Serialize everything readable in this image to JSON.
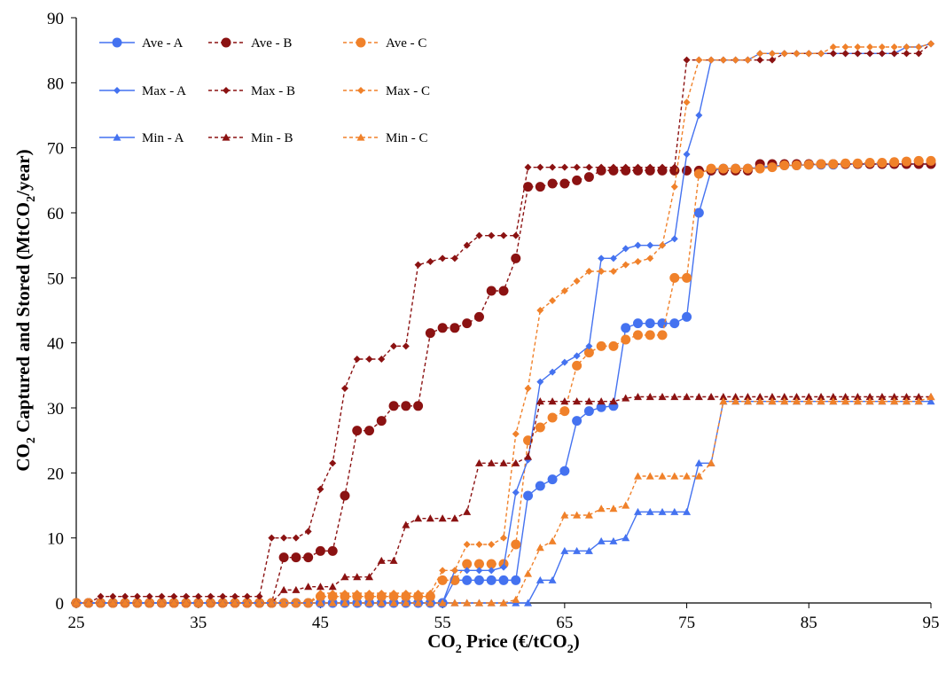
{
  "chart_data": {
    "type": "line",
    "xlabel": "CO2 Price (€/tCO2)",
    "ylabel": "CO2 Captured and Stored (MtCO2/year)",
    "xlim": [
      25,
      95
    ],
    "ylim": [
      0,
      90
    ],
    "xticks": [
      25,
      35,
      45,
      55,
      65,
      75,
      85,
      95
    ],
    "yticks": [
      0,
      10,
      20,
      30,
      40,
      50,
      60,
      70,
      80,
      90
    ],
    "grid": false,
    "legend_position": "top-left",
    "x": [
      25,
      26,
      27,
      28,
      29,
      30,
      31,
      32,
      33,
      34,
      35,
      36,
      37,
      38,
      39,
      40,
      41,
      42,
      43,
      44,
      45,
      46,
      47,
      48,
      49,
      50,
      51,
      52,
      53,
      54,
      55,
      56,
      57,
      58,
      59,
      60,
      61,
      62,
      63,
      64,
      65,
      66,
      67,
      68,
      69,
      70,
      71,
      72,
      73,
      74,
      75,
      76,
      77,
      78,
      79,
      80,
      81,
      82,
      83,
      84,
      85,
      86,
      87,
      88,
      89,
      90,
      91,
      92,
      93,
      94,
      95
    ],
    "series": [
      {
        "name": "Ave - A",
        "color": "#4472f0",
        "dash": "solid",
        "marker": "circle",
        "values": [
          0,
          0,
          0,
          0,
          0,
          0,
          0,
          0,
          0,
          0,
          0,
          0,
          0,
          0,
          0,
          0,
          0,
          0,
          0,
          0,
          0,
          0,
          0,
          0,
          0,
          0,
          0,
          0,
          0,
          0,
          0,
          3.5,
          3.5,
          3.5,
          3.5,
          3.5,
          3.5,
          16.5,
          18,
          19,
          20.3,
          28,
          29.5,
          30.1,
          30.3,
          42.3,
          43,
          43,
          43,
          43,
          44,
          60,
          66.5,
          66.8,
          66.8,
          66.8,
          67,
          67.2,
          67.3,
          67.3,
          67.4,
          67.4,
          67.4,
          67.5,
          67.5,
          67.5,
          67.5,
          67.5,
          67.5,
          67.5,
          67.5
        ]
      },
      {
        "name": "Ave - B",
        "color": "#8b1212",
        "dash": "dashed",
        "marker": "circle",
        "values": [
          0,
          0,
          0,
          0,
          0,
          0,
          0,
          0,
          0,
          0,
          0,
          0,
          0,
          0,
          0,
          0,
          0,
          7,
          7,
          7,
          8,
          8,
          16.5,
          26.5,
          26.5,
          28,
          30.3,
          30.3,
          30.3,
          41.5,
          42.3,
          42.3,
          43,
          44,
          48,
          48,
          53,
          64,
          64,
          64.5,
          64.5,
          65,
          65.5,
          66.5,
          66.5,
          66.5,
          66.5,
          66.5,
          66.5,
          66.5,
          66.5,
          66.5,
          66.5,
          66.5,
          66.5,
          66.5,
          67.5,
          67.5,
          67.5,
          67.5,
          67.5,
          67.5,
          67.5,
          67.5,
          67.5,
          67.5,
          67.5,
          67.5,
          67.5,
          67.5,
          67.5
        ]
      },
      {
        "name": "Ave - C",
        "color": "#f0812a",
        "dash": "dashed",
        "marker": "circle",
        "values": [
          0,
          0,
          0,
          0,
          0,
          0,
          0,
          0,
          0,
          0,
          0,
          0,
          0,
          0,
          0,
          0,
          0,
          0,
          0,
          0,
          1,
          1,
          1,
          1,
          1,
          1,
          1,
          1,
          1,
          1,
          3.5,
          3.5,
          6,
          6,
          6,
          6,
          9,
          25,
          27,
          28.5,
          29.5,
          36.5,
          38.5,
          39.5,
          39.5,
          40.5,
          41.2,
          41.2,
          41.2,
          50,
          50,
          66,
          66.8,
          66.8,
          66.8,
          66.8,
          66.8,
          67,
          67.3,
          67.3,
          67.4,
          67.5,
          67.5,
          67.6,
          67.6,
          67.7,
          67.7,
          67.8,
          67.9,
          68,
          68
        ]
      },
      {
        "name": "Max - A",
        "color": "#4472f0",
        "dash": "solid",
        "marker": "diamond",
        "values": [
          0,
          0,
          0,
          0,
          0,
          0,
          0,
          0,
          0,
          0,
          0,
          0,
          0,
          0,
          0,
          0,
          0,
          0,
          0,
          0,
          0,
          0,
          0,
          0,
          0,
          0,
          0,
          0,
          0,
          0,
          0,
          5,
          5,
          5,
          5,
          5.5,
          17,
          22,
          34,
          35.5,
          37,
          38,
          39.5,
          53,
          53,
          54.5,
          55,
          55,
          55,
          56,
          69,
          75,
          83.5,
          83.5,
          83.5,
          83.5,
          84.5,
          84.5,
          84.5,
          84.5,
          84.5,
          84.5,
          84.5,
          84.5,
          84.5,
          84.5,
          84.5,
          84.5,
          85.5,
          85.5,
          86
        ]
      },
      {
        "name": "Max - B",
        "color": "#8b1212",
        "dash": "dashed",
        "marker": "diamond",
        "values": [
          0,
          0,
          1,
          1,
          1,
          1,
          1,
          1,
          1,
          1,
          1,
          1,
          1,
          1,
          1,
          1,
          10,
          10,
          10,
          11,
          17.5,
          21.5,
          33,
          37.5,
          37.5,
          37.5,
          39.5,
          39.5,
          52,
          52.5,
          53,
          53,
          55,
          56.5,
          56.5,
          56.5,
          56.5,
          67,
          67,
          67,
          67,
          67,
          67,
          67,
          67,
          67,
          67,
          67,
          67,
          67,
          83.5,
          83.5,
          83.5,
          83.5,
          83.5,
          83.5,
          83.5,
          83.5,
          84.5,
          84.5,
          84.5,
          84.5,
          84.5,
          84.5,
          84.5,
          84.5,
          84.5,
          84.5,
          84.5,
          84.5,
          86
        ]
      },
      {
        "name": "Max - C",
        "color": "#f0812a",
        "dash": "dashed",
        "marker": "diamond",
        "values": [
          0,
          0,
          0,
          0,
          0,
          0,
          0,
          0,
          0,
          0,
          0,
          0,
          0,
          0,
          0,
          0,
          0,
          0,
          0,
          0,
          1.5,
          1.5,
          1.5,
          1.5,
          1.5,
          1.5,
          1.5,
          1.5,
          1.5,
          1.5,
          5,
          5,
          9,
          9,
          9,
          10,
          26,
          33,
          45,
          46.5,
          48,
          49.5,
          51,
          51,
          51,
          52,
          52.5,
          53,
          55,
          64,
          77,
          83.5,
          83.5,
          83.5,
          83.5,
          83.5,
          84.5,
          84.5,
          84.5,
          84.5,
          84.5,
          84.5,
          85.5,
          85.5,
          85.5,
          85.5,
          85.5,
          85.5,
          85.5,
          85.5,
          86
        ]
      },
      {
        "name": "Min - A",
        "color": "#4472f0",
        "dash": "solid",
        "marker": "triangle",
        "values": [
          0,
          0,
          0,
          0,
          0,
          0,
          0,
          0,
          0,
          0,
          0,
          0,
          0,
          0,
          0,
          0,
          0,
          0,
          0,
          0,
          0,
          0,
          0,
          0,
          0,
          0,
          0,
          0,
          0,
          0,
          0,
          0,
          0,
          0,
          0,
          0,
          0,
          0,
          3.5,
          3.5,
          8,
          8,
          8,
          9.5,
          9.5,
          10,
          14,
          14,
          14,
          14,
          14,
          21.5,
          21.5,
          31,
          31,
          31,
          31,
          31,
          31,
          31,
          31,
          31,
          31,
          31,
          31,
          31,
          31,
          31,
          31,
          31,
          31
        ]
      },
      {
        "name": "Min - B",
        "color": "#8b1212",
        "dash": "dashed",
        "marker": "triangle",
        "values": [
          0,
          0,
          0,
          0,
          0,
          0,
          0,
          0,
          0,
          0,
          0,
          0,
          0,
          0,
          0,
          0,
          0,
          2,
          2,
          2.5,
          2.5,
          2.5,
          4,
          4,
          4,
          6.5,
          6.5,
          12,
          13,
          13,
          13,
          13,
          14,
          21.5,
          21.5,
          21.5,
          21.5,
          22.5,
          31,
          31,
          31,
          31,
          31,
          31,
          31,
          31.5,
          31.7,
          31.7,
          31.7,
          31.7,
          31.7,
          31.7,
          31.7,
          31.7,
          31.7,
          31.7,
          31.7,
          31.7,
          31.7,
          31.7,
          31.7,
          31.7,
          31.7,
          31.7,
          31.7,
          31.7,
          31.7,
          31.7,
          31.7,
          31.7,
          31.7
        ]
      },
      {
        "name": "Min - C",
        "color": "#f0812a",
        "dash": "dashed",
        "marker": "triangle",
        "values": [
          0,
          0,
          0,
          0,
          0,
          0,
          0,
          0,
          0,
          0,
          0,
          0,
          0,
          0,
          0,
          0,
          0,
          0,
          0,
          0,
          0,
          0,
          0,
          0,
          0,
          0,
          0,
          0,
          0,
          0,
          0,
          0,
          0,
          0,
          0,
          0,
          0.5,
          4.5,
          8.5,
          9.5,
          13.5,
          13.5,
          13.5,
          14.5,
          14.5,
          15,
          19.5,
          19.5,
          19.5,
          19.5,
          19.5,
          19.5,
          21.5,
          31,
          31,
          31,
          31,
          31,
          31,
          31,
          31,
          31,
          31,
          31,
          31,
          31,
          31,
          31,
          31,
          31,
          31.7
        ]
      }
    ]
  }
}
